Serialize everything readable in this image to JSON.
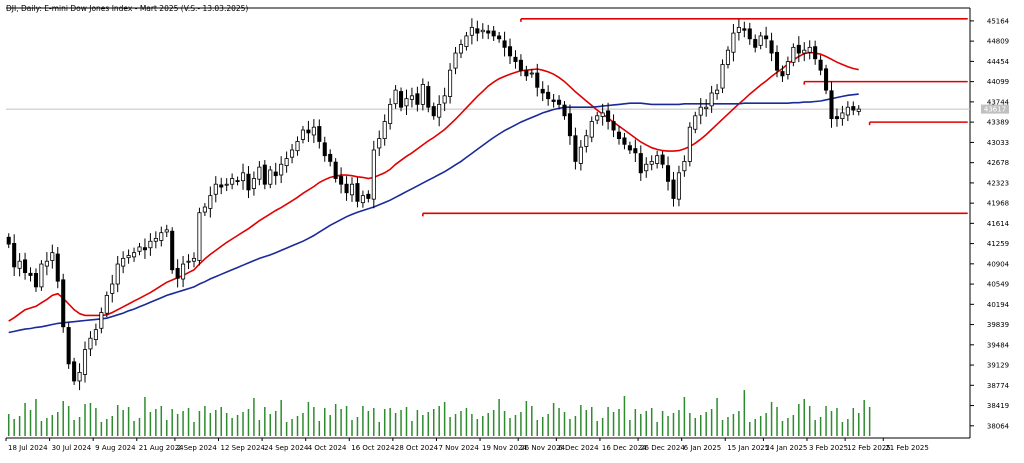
{
  "chart_data": {
    "type": "candlestick",
    "title": "DJI, Daily:  E-mini Dow Jones Index  - Mart 2025 (V.S.- 13.03.2025)",
    "y_ticks": [
      45164,
      44809,
      44454,
      44099,
      43744,
      43389,
      43033,
      42678,
      42323,
      41968,
      41614,
      41259,
      40904,
      40549,
      40194,
      39839,
      39484,
      39129,
      38774,
      38419,
      38064
    ],
    "ylim": [
      37850,
      45390
    ],
    "current_price_label": "43617",
    "current_price": 43617,
    "x_ticks": [
      {
        "label": "18 Jul 2024",
        "index": 0
      },
      {
        "label": "30 Jul 2024",
        "index": 8
      },
      {
        "label": "9 Aug 2024",
        "index": 16
      },
      {
        "label": "21 Aug 2024",
        "index": 24
      },
      {
        "label": "2 Sep 2024",
        "index": 31
      },
      {
        "label": "12 Sep 2024",
        "index": 39
      },
      {
        "label": "24 Sep 2024",
        "index": 47
      },
      {
        "label": "4 Oct 2024",
        "index": 55
      },
      {
        "label": "16 Oct 2024",
        "index": 63
      },
      {
        "label": "28 Oct 2024",
        "index": 71
      },
      {
        "label": "7 Nov 2024",
        "index": 79
      },
      {
        "label": "19 Nov 2024",
        "index": 87
      },
      {
        "label": "26 Nov 2024",
        "index": 94
      },
      {
        "label": "6 Dec 2024",
        "index": 101
      },
      {
        "label": "16 Dec 2024",
        "index": 109
      },
      {
        "label": "26 Dec 2024",
        "index": 116
      },
      {
        "label": "6 Jan 2025",
        "index": 124
      },
      {
        "label": "15 Jan 2025",
        "index": 132
      },
      {
        "label": "24 Jan 2025",
        "index": 139
      },
      {
        "label": "3 Feb 2025",
        "index": 147
      },
      {
        "label": "12 Feb 2025",
        "index": 154
      },
      {
        "label": "21 Feb 2025",
        "index": 161
      }
    ],
    "close": [
      41250,
      40850,
      40950,
      40750,
      40700,
      40500,
      40900,
      40950,
      41100,
      40600,
      39800,
      39150,
      38850,
      39000,
      39400,
      39600,
      39750,
      40050,
      40350,
      40550,
      40900,
      41000,
      41050,
      41100,
      41200,
      41150,
      41300,
      41350,
      41450,
      41500,
      40800,
      40650,
      40900,
      40950,
      41000,
      41800,
      41900,
      42100,
      42300,
      42250,
      42300,
      42400,
      42350,
      42500,
      42200,
      42400,
      42600,
      42300,
      42550,
      42450,
      42650,
      42750,
      42900,
      43050,
      43250,
      43200,
      43300,
      43050,
      42800,
      42700,
      42400,
      42300,
      42150,
      42300,
      42000,
      42100,
      42050,
      42900,
      43100,
      43400,
      43700,
      43950,
      43650,
      43800,
      43850,
      43700,
      44050,
      43650,
      43500,
      43700,
      43850,
      44300,
      44600,
      44750,
      44900,
      45050,
      44950,
      45000,
      44950,
      44900,
      44850,
      44700,
      44550,
      44450,
      44300,
      44200,
      44250,
      44000,
      43900,
      43800,
      43750,
      43700,
      43500,
      43150,
      42700,
      42950,
      43150,
      43400,
      43500,
      43550,
      43400,
      43250,
      43100,
      43000,
      42900,
      42850,
      42500,
      42650,
      42700,
      42800,
      42650,
      42350,
      42050,
      42500,
      42700,
      43300,
      43500,
      43650,
      43650,
      43900,
      43950,
      44400,
      44650,
      44950,
      45050,
      45000,
      44850,
      44700,
      44900,
      44850,
      44600,
      44300,
      44200,
      44450,
      44700,
      44600,
      44650,
      44700,
      44500,
      44300,
      43950,
      43450,
      43450,
      43550,
      43650,
      43600,
      43617
    ],
    "volume_bars": 159,
    "series": [
      {
        "name": "",
        "color": "#e00000",
        "values": [
          39900,
          39960,
          40030,
          40100,
          40130,
          40160,
          40220,
          40280,
          40350,
          40380,
          40300,
          40200,
          40100,
          40030,
          40000,
          40000,
          40000,
          40000,
          40010,
          40050,
          40100,
          40150,
          40200,
          40250,
          40300,
          40350,
          40400,
          40460,
          40520,
          40580,
          40620,
          40660,
          40700,
          40750,
          40800,
          40900,
          40990,
          41070,
          41140,
          41210,
          41280,
          41340,
          41400,
          41460,
          41520,
          41590,
          41660,
          41720,
          41780,
          41840,
          41890,
          41950,
          42010,
          42070,
          42140,
          42200,
          42260,
          42330,
          42380,
          42420,
          42440,
          42460,
          42460,
          42450,
          42430,
          42420,
          42400,
          42420,
          42460,
          42500,
          42560,
          42650,
          42720,
          42790,
          42850,
          42920,
          42990,
          43060,
          43120,
          43190,
          43260,
          43350,
          43440,
          43540,
          43640,
          43740,
          43840,
          43930,
          44020,
          44090,
          44150,
          44190,
          44230,
          44260,
          44290,
          44300,
          44310,
          44320,
          44300,
          44270,
          44230,
          44170,
          44100,
          44010,
          43920,
          43840,
          43760,
          43680,
          43600,
          43530,
          43460,
          43390,
          43320,
          43250,
          43180,
          43110,
          43040,
          42990,
          42940,
          42910,
          42890,
          42880,
          42880,
          42890,
          42920,
          42960,
          43020,
          43090,
          43170,
          43260,
          43350,
          43440,
          43530,
          43620,
          43710,
          43790,
          43880,
          43960,
          44040,
          44110,
          44190,
          44260,
          44330,
          44410,
          44480,
          44540,
          44590,
          44610,
          44600,
          44580,
          44540,
          44490,
          44440,
          44400,
          44360,
          44330,
          44310
        ]
      },
      {
        "name": "",
        "color": "#1a2a99",
        "values": [
          39700,
          39720,
          39740,
          39760,
          39770,
          39790,
          39800,
          39820,
          39840,
          39860,
          39870,
          39880,
          39890,
          39900,
          39910,
          39920,
          39930,
          39940,
          39950,
          39980,
          40010,
          40040,
          40080,
          40110,
          40150,
          40190,
          40230,
          40270,
          40310,
          40350,
          40380,
          40410,
          40440,
          40470,
          40500,
          40550,
          40590,
          40640,
          40680,
          40720,
          40760,
          40800,
          40840,
          40880,
          40920,
          40960,
          41000,
          41030,
          41060,
          41100,
          41140,
          41180,
          41220,
          41260,
          41300,
          41350,
          41400,
          41460,
          41520,
          41580,
          41630,
          41680,
          41730,
          41770,
          41810,
          41840,
          41870,
          41900,
          41940,
          41980,
          42020,
          42070,
          42120,
          42170,
          42220,
          42270,
          42320,
          42370,
          42420,
          42470,
          42520,
          42580,
          42640,
          42700,
          42770,
          42840,
          42910,
          42980,
          43050,
          43120,
          43180,
          43240,
          43290,
          43340,
          43390,
          43430,
          43470,
          43510,
          43550,
          43580,
          43610,
          43630,
          43650,
          43650,
          43650,
          43650,
          43650,
          43650,
          43660,
          43670,
          43680,
          43690,
          43700,
          43710,
          43720,
          43720,
          43720,
          43710,
          43700,
          43700,
          43700,
          43700,
          43700,
          43700,
          43710,
          43710,
          43710,
          43710,
          43710,
          43710,
          43710,
          43710,
          43710,
          43710,
          43710,
          43720,
          43720,
          43720,
          43720,
          43720,
          43720,
          43720,
          43720,
          43720,
          43730,
          43730,
          43740,
          43740,
          43750,
          43760,
          43780,
          43800,
          43820,
          43840,
          43860,
          43870,
          43880
        ]
      }
    ],
    "levels": [
      {
        "start": 94,
        "end": 176,
        "value": 45200
      },
      {
        "start": 146,
        "end": 176,
        "value": 44099
      },
      {
        "start": 158,
        "end": 176,
        "value": 43389
      },
      {
        "start": 76,
        "end": 176,
        "value": 41789
      }
    ],
    "colors": {
      "up": "#ffffff",
      "down": "#000000",
      "outline": "#000000",
      "volume": "#2e8b2e",
      "level": "#e00000",
      "ma_fast": "#e00000",
      "ma_slow": "#1a2a99",
      "grid_axis": "#000000",
      "current_line": "#c0c0c0",
      "current_label_bg": "#c0c0c0"
    }
  }
}
